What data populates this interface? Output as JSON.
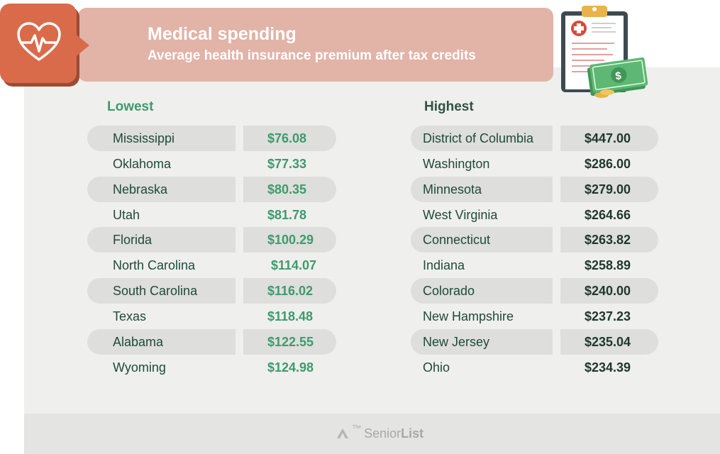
{
  "header": {
    "title": "Medical spending",
    "subtitle": "Average health insurance premium after tax credits"
  },
  "lowest": {
    "heading": "Lowest",
    "rows": [
      {
        "state": "Mississippi",
        "value": "$76.08"
      },
      {
        "state": "Oklahoma",
        "value": "$77.33"
      },
      {
        "state": "Nebraska",
        "value": "$80.35"
      },
      {
        "state": "Utah",
        "value": "$81.78"
      },
      {
        "state": "Florida",
        "value": "$100.29"
      },
      {
        "state": "North Carolina",
        "value": "$114.07"
      },
      {
        "state": "South Carolina",
        "value": "$116.02"
      },
      {
        "state": "Texas",
        "value": "$118.48"
      },
      {
        "state": "Alabama",
        "value": "$122.55"
      },
      {
        "state": "Wyoming",
        "value": "$124.98"
      }
    ]
  },
  "highest": {
    "heading": "Highest",
    "rows": [
      {
        "state": "District of Columbia",
        "value": "$447.00"
      },
      {
        "state": "Washington",
        "value": "$286.00"
      },
      {
        "state": "Minnesota",
        "value": "$279.00"
      },
      {
        "state": "West Virginia",
        "value": "$264.66"
      },
      {
        "state": "Connecticut",
        "value": "$263.82"
      },
      {
        "state": "Indiana",
        "value": "$258.89"
      },
      {
        "state": "Colorado",
        "value": "$240.00"
      },
      {
        "state": "New Hampshire",
        "value": "$237.23"
      },
      {
        "state": "New Jersey",
        "value": "$235.04"
      },
      {
        "state": "Ohio",
        "value": "$234.39"
      }
    ]
  },
  "footer": {
    "logo_small": "The",
    "logo_senior": "Senior",
    "logo_list": "List"
  },
  "colors": {
    "header_band": "#e2b3a7",
    "icon_box": "#d96b4b",
    "lowest_accent": "#3d9b6b",
    "highest_accent": "#20382e"
  },
  "icons": {
    "header_icon": "heart-pulse-icon",
    "illustration": "clipboard-money-icon",
    "logo_icon": "senior-list-logo-icon"
  }
}
